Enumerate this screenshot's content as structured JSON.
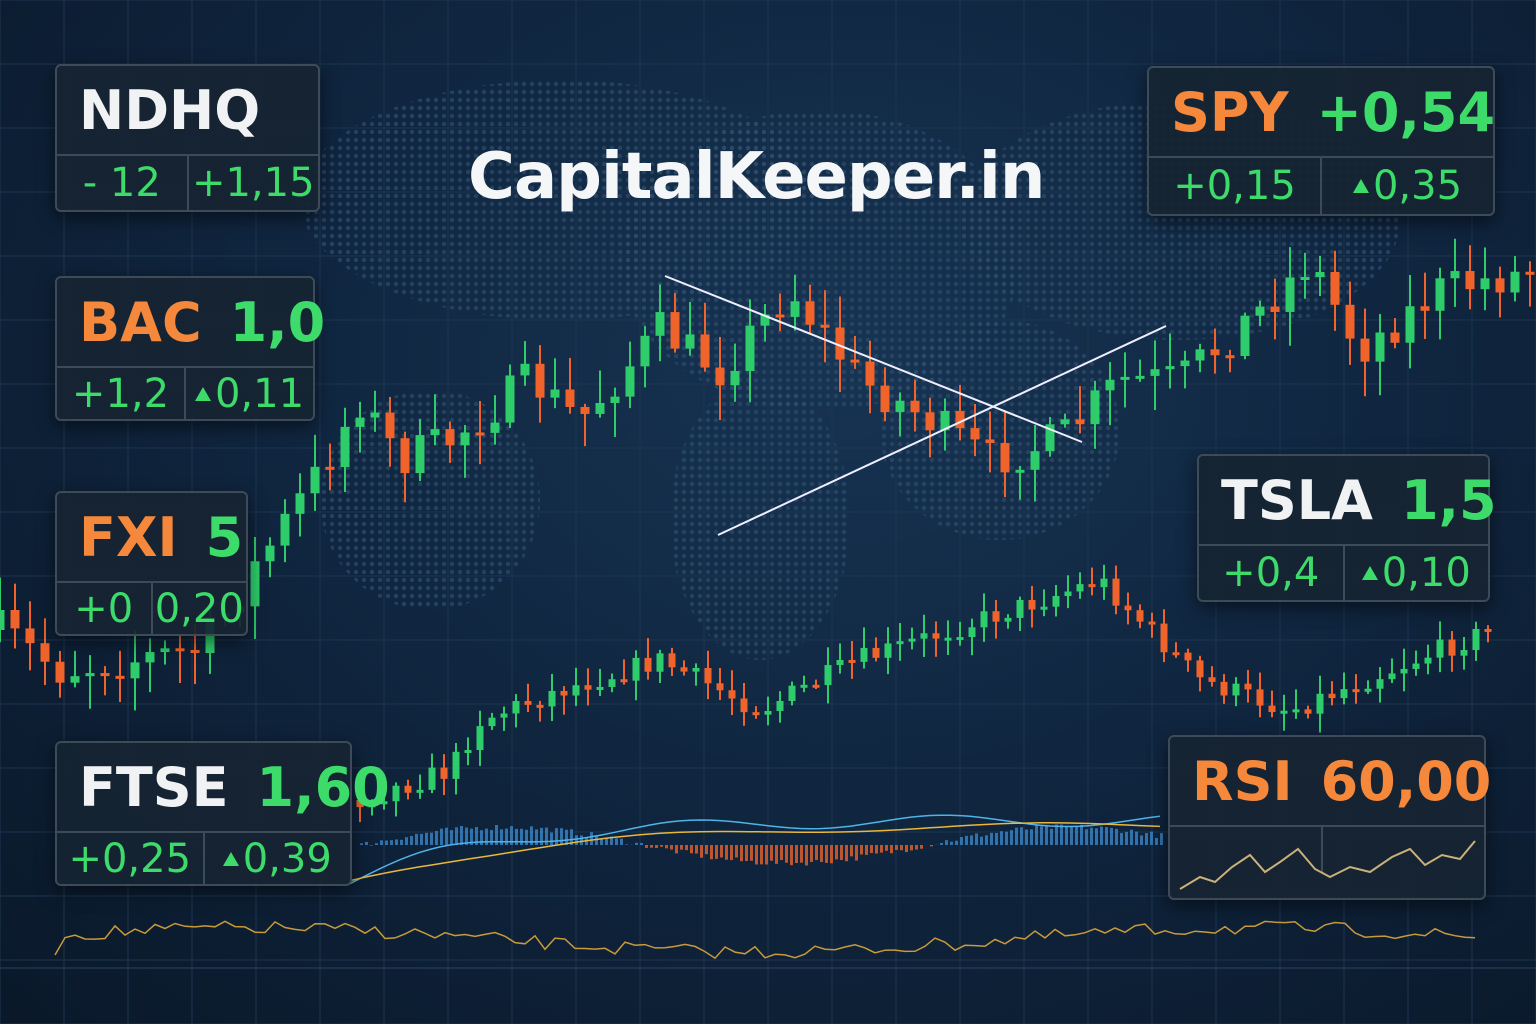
{
  "title": "CapitalKeeper.in",
  "cards": [
    {
      "symbol": "NDHQ",
      "cells": [
        "- 12",
        "+1,15"
      ]
    },
    {
      "symbol": "BAC",
      "value": "1,0",
      "cells": [
        "+1,2",
        "0,11"
      ]
    },
    {
      "symbol": "FXI",
      "value": "5",
      "cells": [
        "+0",
        "0,20"
      ]
    },
    {
      "symbol": "FTSE",
      "value": "1,60",
      "cells": [
        "+0,25",
        "0,39"
      ]
    },
    {
      "symbol": "SPY",
      "value": "+0,54",
      "cells": [
        "+0,15",
        "0,35"
      ]
    },
    {
      "symbol": "TSLA",
      "value": "1,5",
      "cells": [
        "+0,4",
        "0,10"
      ]
    },
    {
      "symbol": "RSI",
      "value": "60,00"
    }
  ]
}
